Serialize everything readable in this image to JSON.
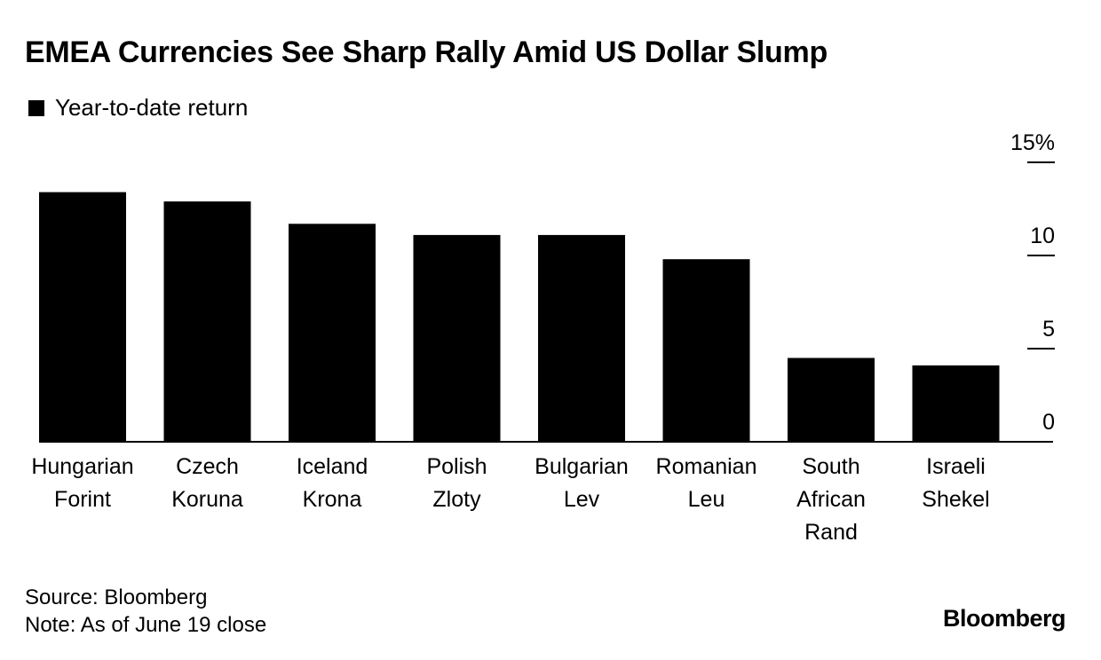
{
  "header": {
    "title": "EMEA Currencies See Sharp Rally Amid US Dollar Slump",
    "legend_label": "Year-to-date return"
  },
  "footer": {
    "source": "Source: Bloomberg",
    "note": "Note: As of June 19 close",
    "brand": "Bloomberg"
  },
  "colors": {
    "bar": "#000000",
    "axis": "#000000",
    "background": "#ffffff"
  },
  "chart_data": {
    "type": "bar",
    "title": "EMEA Currencies See Sharp Rally Amid US Dollar Slump",
    "xlabel": "",
    "ylabel": "",
    "categories": [
      [
        "Hungarian",
        "Forint"
      ],
      [
        "Czech",
        "Koruna"
      ],
      [
        "Iceland",
        "Krona"
      ],
      [
        "Polish",
        "Zloty"
      ],
      [
        "Bulgarian",
        "Lev"
      ],
      [
        "Romanian",
        "Leu"
      ],
      [
        "South",
        "African",
        "Rand"
      ],
      [
        "Israeli",
        "Shekel"
      ]
    ],
    "series": [
      {
        "name": "Year-to-date return",
        "values": [
          13.4,
          12.9,
          11.7,
          11.1,
          11.1,
          9.8,
          4.5,
          4.1
        ]
      }
    ],
    "ylim": [
      0,
      15
    ],
    "yticks": [
      0,
      5,
      10,
      15
    ],
    "ytick_labels": [
      "0",
      "5",
      "10",
      "15%"
    ],
    "y_axis_side": "right",
    "grid": false,
    "legend_position": "top-left"
  }
}
